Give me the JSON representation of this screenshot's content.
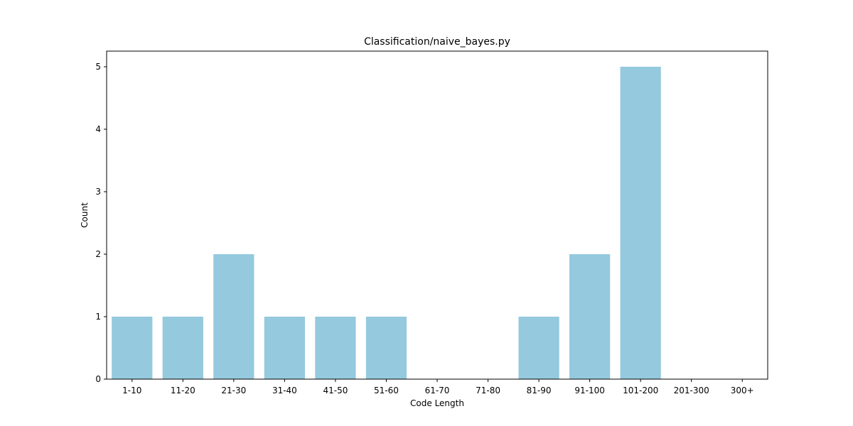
{
  "chart_data": {
    "type": "bar",
    "title": "Classification/naive_bayes.py",
    "xlabel": "Code Length",
    "ylabel": "Count",
    "categories": [
      "1-10",
      "11-20",
      "21-30",
      "31-40",
      "41-50",
      "51-60",
      "61-70",
      "71-80",
      "81-90",
      "91-100",
      "101-200",
      "201-300",
      "300+"
    ],
    "values": [
      1,
      1,
      2,
      1,
      1,
      1,
      0,
      0,
      1,
      2,
      5,
      0,
      0
    ],
    "ylim": [
      0,
      5.25
    ],
    "yticks": [
      "0",
      "1",
      "2",
      "3",
      "4",
      "5"
    ],
    "bar_color": "#95c9de",
    "grid": false,
    "legend": "none"
  }
}
